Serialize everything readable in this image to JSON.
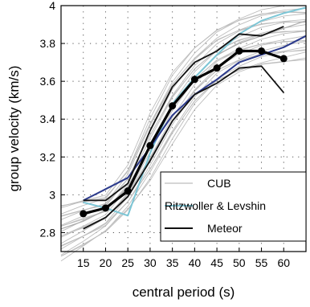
{
  "chart_data": {
    "type": "line",
    "xlabel": "central period (s)",
    "ylabel": "group velocity (km/s)",
    "xlim": [
      10,
      65
    ],
    "ylim": [
      2.7,
      4.0
    ],
    "xticks": [
      15,
      20,
      25,
      30,
      35,
      40,
      45,
      50,
      55,
      60
    ],
    "xtick_labels": [
      "15",
      "20",
      "25",
      "30",
      "35",
      "40",
      "45",
      "50",
      "55",
      "60"
    ],
    "yticks": [
      2.8,
      3.0,
      3.2,
      3.4,
      3.6,
      3.8,
      4.0
    ],
    "ytick_labels": [
      "2.8",
      "3",
      "3.2",
      "3.4",
      "3.6",
      "3.8",
      "4"
    ],
    "grid": true,
    "legend_position": "bottom-right",
    "legend": [
      "CUB",
      "Ritzwoller & Levshin",
      "Meteor"
    ],
    "colors": {
      "cub": "#bdbdbd",
      "ritzwoller": "#7cc6d6",
      "blue": "#2b3a8c",
      "meteor": "#111111",
      "mean": "#000000"
    },
    "cub_range": {
      "x": [
        10,
        15,
        20,
        25,
        30,
        35,
        40,
        45,
        50,
        55,
        60,
        65
      ],
      "low": [
        2.65,
        2.72,
        2.8,
        2.92,
        3.08,
        3.28,
        3.46,
        3.58,
        3.64,
        3.68,
        3.7,
        3.72
      ],
      "high": [
        2.95,
        2.98,
        3.0,
        3.15,
        3.42,
        3.64,
        3.78,
        3.88,
        3.94,
        3.98,
        4.0,
        4.0
      ]
    },
    "series": [
      {
        "name": "CUB",
        "role": "cub-center",
        "x": [
          10,
          15,
          20,
          25,
          30,
          35,
          40,
          45,
          50,
          55,
          60,
          65
        ],
        "y": [
          2.82,
          2.86,
          2.92,
          3.04,
          3.25,
          3.46,
          3.62,
          3.74,
          3.8,
          3.84,
          3.88,
          3.92
        ]
      },
      {
        "name": "Ritzwoller & Levshin",
        "role": "ritzwoller",
        "x": [
          15,
          20,
          25,
          30,
          35,
          40,
          45,
          50,
          55,
          60,
          65
        ],
        "y": [
          2.96,
          2.93,
          2.89,
          3.22,
          3.48,
          3.62,
          3.74,
          3.85,
          3.92,
          3.96,
          3.99
        ]
      },
      {
        "role": "blue",
        "x": [
          15,
          20,
          25,
          30,
          35,
          40,
          45,
          50,
          55,
          60,
          65
        ],
        "y": [
          2.97,
          3.03,
          3.09,
          3.25,
          3.42,
          3.53,
          3.61,
          3.7,
          3.74,
          3.78,
          3.84
        ]
      },
      {
        "name": "Meteor",
        "role": "meteor-upper",
        "x": [
          15,
          20,
          25,
          30,
          35,
          40,
          45,
          50,
          55,
          60
        ],
        "y": [
          2.97,
          2.97,
          3.06,
          3.34,
          3.57,
          3.7,
          3.76,
          3.85,
          3.84,
          3.89
        ]
      },
      {
        "role": "meteor-lower",
        "x": [
          15,
          20,
          25,
          30,
          35,
          40,
          45,
          50,
          55,
          60
        ],
        "y": [
          2.82,
          2.88,
          2.99,
          3.18,
          3.39,
          3.53,
          3.59,
          3.67,
          3.68,
          3.54
        ]
      },
      {
        "role": "mean",
        "x": [
          15,
          20,
          25,
          30,
          35,
          40,
          45,
          50,
          55,
          60
        ],
        "y": [
          2.9,
          2.93,
          3.02,
          3.26,
          3.47,
          3.61,
          3.67,
          3.76,
          3.76,
          3.72
        ]
      }
    ]
  }
}
